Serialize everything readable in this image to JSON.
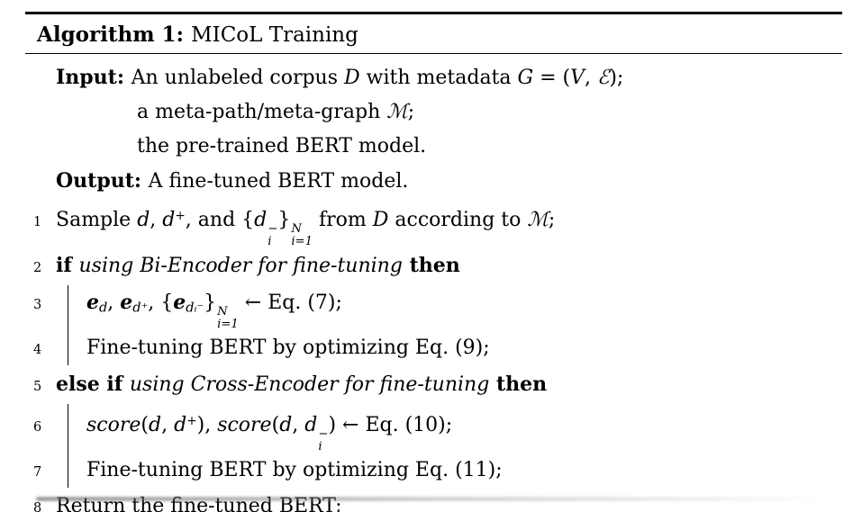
{
  "title": {
    "segments": [
      {
        "t": "Algorithm 1: ",
        "s": "b"
      },
      {
        "t": "MICoL Training",
        "s": "n"
      }
    ]
  },
  "lines": [
    {
      "num": "",
      "type": "plain",
      "segments": [
        {
          "t": "Input: ",
          "s": "b"
        },
        {
          "t": "An unlabeled corpus ",
          "s": "n"
        },
        {
          "t": "D",
          "s": "cal"
        },
        {
          "t": " with metadata ",
          "s": "n"
        },
        {
          "t": "G",
          "s": "i"
        },
        {
          "t": " = (",
          "s": "n"
        },
        {
          "t": "V",
          "s": "cal"
        },
        {
          "t": ", ",
          "s": "n"
        },
        {
          "t": "ℰ",
          "s": "cal"
        },
        {
          "t": ");",
          "s": "n"
        }
      ]
    },
    {
      "num": "",
      "type": "cont",
      "segments": [
        {
          "t": "a meta-path/meta-graph ",
          "s": "n"
        },
        {
          "t": "ℳ",
          "s": "cal"
        },
        {
          "t": ";",
          "s": "n"
        }
      ]
    },
    {
      "num": "",
      "type": "cont",
      "segments": [
        {
          "t": "the pre-trained BERT model.",
          "s": "n"
        }
      ]
    },
    {
      "num": "",
      "type": "plain",
      "segments": [
        {
          "t": "Output: ",
          "s": "b"
        },
        {
          "t": "A fine-tuned BERT model.",
          "s": "n"
        }
      ]
    },
    {
      "num": "1",
      "type": "plain",
      "segments": [
        {
          "t": "Sample ",
          "s": "n"
        },
        {
          "t": "d",
          "s": "i"
        },
        {
          "t": ", ",
          "s": "n"
        },
        {
          "t": "d",
          "s": "i"
        },
        {
          "t": "+",
          "s": "sup"
        },
        {
          "t": ", and {",
          "s": "n"
        },
        {
          "t": "d",
          "s": "i"
        },
        {
          "s": "stack",
          "sup": "−",
          "sub": "i"
        },
        {
          "t": "}",
          "s": "n"
        },
        {
          "s": "stack",
          "sup": "N",
          "sub": "i=1"
        },
        {
          "t": " from ",
          "s": "n"
        },
        {
          "t": "D",
          "s": "cal"
        },
        {
          "t": " according to ",
          "s": "n"
        },
        {
          "t": "ℳ",
          "s": "cal"
        },
        {
          "t": ";",
          "s": "n"
        }
      ]
    },
    {
      "num": "2",
      "type": "plain",
      "segments": [
        {
          "t": "if ",
          "s": "b"
        },
        {
          "t": "using Bi-Encoder for fine-tuning",
          "s": "i"
        },
        {
          "t": " then",
          "s": "b"
        }
      ]
    },
    {
      "num": "3",
      "type": "block",
      "segments": [
        {
          "t": "e",
          "s": "bi"
        },
        {
          "t": "d",
          "s": "subi"
        },
        {
          "t": ", ",
          "s": "n"
        },
        {
          "t": "e",
          "s": "bi"
        },
        {
          "t": "d⁺",
          "s": "subi"
        },
        {
          "t": ", {",
          "s": "n"
        },
        {
          "t": "e",
          "s": "bi"
        },
        {
          "t": "dᵢ⁻",
          "s": "subi"
        },
        {
          "t": "}",
          "s": "n"
        },
        {
          "s": "stack",
          "sup": "N",
          "sub": "i=1"
        },
        {
          "t": " ← Eq. (7);",
          "s": "n"
        }
      ]
    },
    {
      "num": "4",
      "type": "block",
      "segments": [
        {
          "t": "Fine-tuning BERT by optimizing Eq. (9);",
          "s": "n"
        }
      ]
    },
    {
      "num": "5",
      "type": "plain",
      "segments": [
        {
          "t": "else if ",
          "s": "b"
        },
        {
          "t": "using Cross-Encoder for fine-tuning",
          "s": "i"
        },
        {
          "t": " then",
          "s": "b"
        }
      ]
    },
    {
      "num": "6",
      "type": "block",
      "segments": [
        {
          "t": "score",
          "s": "i"
        },
        {
          "t": "(",
          "s": "n"
        },
        {
          "t": "d",
          "s": "i"
        },
        {
          "t": ", ",
          "s": "n"
        },
        {
          "t": "d",
          "s": "i"
        },
        {
          "t": "+",
          "s": "sup"
        },
        {
          "t": "), ",
          "s": "n"
        },
        {
          "t": "score",
          "s": "i"
        },
        {
          "t": "(",
          "s": "n"
        },
        {
          "t": "d",
          "s": "i"
        },
        {
          "t": ", ",
          "s": "n"
        },
        {
          "t": "d",
          "s": "i"
        },
        {
          "s": "stack",
          "sup": "−",
          "sub": "i"
        },
        {
          "t": ") ← Eq. (10);",
          "s": "n"
        }
      ]
    },
    {
      "num": "7",
      "type": "block",
      "segments": [
        {
          "t": "Fine-tuning BERT by optimizing Eq. (11);",
          "s": "n"
        }
      ]
    },
    {
      "num": "8",
      "type": "plain",
      "segments": [
        {
          "t": "Return the fine-tuned BERT;",
          "s": "n"
        }
      ]
    }
  ]
}
